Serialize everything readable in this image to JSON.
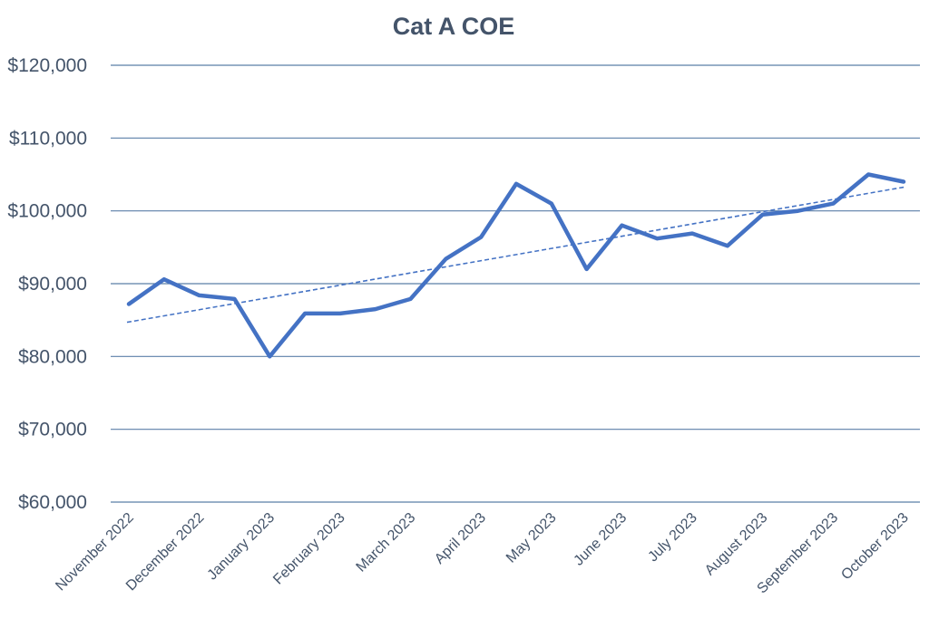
{
  "chart_data": {
    "type": "line",
    "title": "Cat A COE",
    "xlabel": "",
    "ylabel": "",
    "ylim": [
      60000,
      120000
    ],
    "y_ticks": [
      60000,
      70000,
      80000,
      90000,
      100000,
      110000,
      120000
    ],
    "y_tick_labels": [
      "$60,000",
      "$70,000",
      "$80,000",
      "$90,000",
      "$100,000",
      "$110,000",
      "$120,000"
    ],
    "x_tick_labels": [
      "November 2022",
      "December 2022",
      "January 2023",
      "February 2023",
      "March 2023",
      "April 2023",
      "May 2023",
      "June 2023",
      "July 2023",
      "August 2023",
      "September 2023",
      "October 2023"
    ],
    "grid": true,
    "series": [
      {
        "name": "Cat A COE",
        "color": "#4472c4",
        "values": [
          87200,
          90600,
          88400,
          87900,
          80000,
          85900,
          85900,
          86500,
          87900,
          93400,
          96400,
          103700,
          101000,
          92000,
          98000,
          96200,
          96900,
          95200,
          99500,
          100000,
          101000,
          105000,
          104000
        ]
      },
      {
        "name": "Trendline",
        "color": "#4472c4",
        "style": "dashed",
        "values": [
          84700,
          103300
        ]
      }
    ]
  }
}
